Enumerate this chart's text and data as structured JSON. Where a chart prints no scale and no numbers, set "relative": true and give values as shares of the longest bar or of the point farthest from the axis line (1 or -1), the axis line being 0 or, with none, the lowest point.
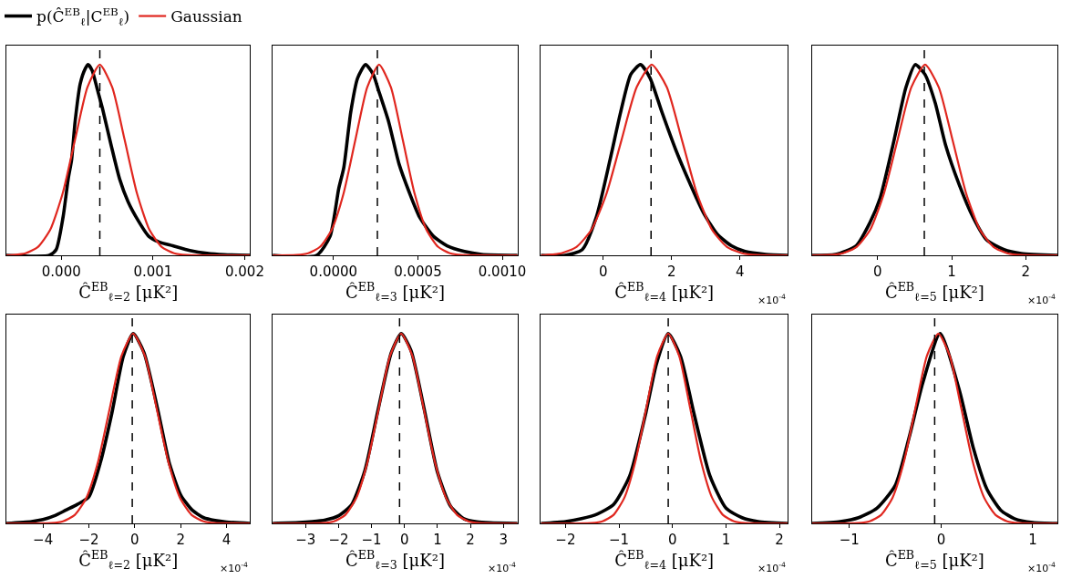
{
  "chart_data": [
    {
      "type": "line",
      "relative": true,
      "legend": "top left",
      "xlabel": "Ĉ$^{EB}$$_{ℓ=2}$ [μK²]",
      "xlim": [
        -0.0006,
        0.00206
      ],
      "xticks": [
        {
          "value": 0,
          "label": "0.000"
        },
        {
          "value": 0.001,
          "label": "0.001"
        },
        {
          "value": 0.002,
          "label": "0.002"
        }
      ],
      "ref_lines": [
        {
          "axis": "x",
          "value": 0.00042,
          "color": "#000000",
          "line_style": "dashed"
        }
      ],
      "series": [
        {
          "name": "p(Ĉ$^{EB}$$_{ℓ}$|C$^{EB}$$_{ℓ}$)",
          "color": "#000000",
          "x": [
            -0.0006,
            -0.00013,
            -5.6e-05,
            1.9e-05,
            7.5e-05,
            0.000112,
            0.00015,
            0.000206,
            0.000262,
            0.000292,
            0.000336,
            0.000393,
            0.000449,
            0.000542,
            0.000636,
            0.000729,
            0.000841,
            0.000953,
            0.001065,
            0.001215,
            0.001402,
            0.001589,
            0.001776,
            0.00206
          ],
          "values": [
            0,
            0,
            0.03,
            0.2,
            0.4,
            0.5,
            0.7,
            0.9,
            0.98,
            1,
            0.97,
            0.87,
            0.77,
            0.58,
            0.4,
            0.28,
            0.18,
            0.1,
            0.07,
            0.05,
            0.025,
            0.01,
            0.003,
            0
          ]
        },
        {
          "name": "Gaussian",
          "color": "#e0271f",
          "x": [
            -0.0006,
            -0.000525,
            -0.00039,
            -0.000255,
            -0.00012,
            1.5e-05,
            0.00015,
            0.000285,
            0.00042,
            0.000555,
            0.00069,
            0.000825,
            0.00096,
            0.001095,
            0.00123,
            0.001365,
            0.00206
          ],
          "values": [
            0,
            0.002,
            0.011,
            0.044,
            0.135,
            0.325,
            0.607,
            0.882,
            1,
            0.882,
            0.607,
            0.325,
            0.135,
            0.044,
            0.011,
            0.002,
            0
          ]
        }
      ]
    },
    {
      "type": "line",
      "relative": true,
      "xlabel": "Ĉ$^{EB}$$_{ℓ=3}$ [μK²]",
      "xlim": [
        -0.00036,
        0.00109
      ],
      "xticks": [
        {
          "value": 0,
          "label": "0.0000"
        },
        {
          "value": 0.0005,
          "label": "0.0005"
        },
        {
          "value": 0.001,
          "label": "0.0010"
        }
      ],
      "ref_lines": [
        {
          "axis": "x",
          "value": 0.00026,
          "color": "#000000",
          "line_style": "dashed"
        }
      ],
      "series": [
        {
          "color": "#000000",
          "x": [
            -0.00036,
            -0.0001,
            -2e-05,
            3.1e-05,
            6.1e-05,
            0.000102,
            0.000143,
            0.00019,
            0.000235,
            0.000265,
            0.000327,
            0.000388,
            0.000449,
            0.00051,
            0.000592,
            0.000673,
            0.000776,
            0.000878,
            0.00109
          ],
          "values": [
            0,
            0,
            0.1,
            0.35,
            0.46,
            0.75,
            0.93,
            1,
            0.95,
            0.87,
            0.7,
            0.48,
            0.33,
            0.2,
            0.1,
            0.05,
            0.02,
            0.005,
            0
          ]
        },
        {
          "color": "#e0271f",
          "x": [
            -0.00036,
            -0.00022,
            -0.00015,
            -8e-05,
            -1e-05,
            6e-05,
            0.00013,
            0.0002,
            0.00027,
            0.00034,
            0.00041,
            0.00048,
            0.00055,
            0.00062,
            0.00069,
            0.00076,
            0.00109
          ],
          "values": [
            0,
            0.002,
            0.011,
            0.044,
            0.135,
            0.325,
            0.607,
            0.882,
            1,
            0.882,
            0.607,
            0.325,
            0.135,
            0.044,
            0.011,
            0.002,
            0
          ]
        }
      ]
    },
    {
      "type": "line",
      "relative": true,
      "xlabel": "Ĉ$^{EB}$$_{ℓ=4}$ [μK²]",
      "xlim": [
        -1.82,
        5.39
      ],
      "xticks": [
        0,
        2,
        4
      ],
      "annotations": [
        "×10$^{-4}$"
      ],
      "ref_lines": [
        {
          "axis": "x",
          "value": 1.4,
          "color": "#000000",
          "line_style": "dashed"
        }
      ],
      "series": [
        {
          "color": "#000000",
          "x": [
            -1.82,
            -1.11,
            -0.61,
            -0.2,
            0.2,
            0.51,
            0.81,
            1.09,
            1.37,
            1.72,
            2.13,
            2.53,
            2.94,
            3.34,
            3.75,
            4.15,
            4.76,
            5.39
          ],
          "values": [
            0,
            0,
            0.03,
            0.2,
            0.5,
            0.75,
            0.95,
            1,
            0.93,
            0.75,
            0.55,
            0.38,
            0.22,
            0.11,
            0.05,
            0.02,
            0.005,
            0
          ]
        },
        {
          "color": "#e0271f",
          "x": [
            -1.82,
            -1.66,
            -1.22,
            -0.78,
            -0.34,
            0.1,
            0.54,
            0.98,
            1.42,
            1.86,
            2.3,
            2.74,
            3.18,
            3.62,
            4.06,
            4.5,
            5.39
          ],
          "values": [
            0,
            0.002,
            0.011,
            0.044,
            0.135,
            0.325,
            0.607,
            0.882,
            1,
            0.882,
            0.607,
            0.325,
            0.135,
            0.044,
            0.011,
            0.002,
            0
          ]
        }
      ]
    },
    {
      "type": "line",
      "relative": true,
      "xlabel": "Ĉ$^{EB}$$_{ℓ=5}$ [μK²]",
      "xlim": [
        -0.89,
        2.43
      ],
      "xticks": [
        0,
        1,
        2
      ],
      "annotations": [
        "×10$^{-4}$"
      ],
      "ref_lines": [
        {
          "axis": "x",
          "value": 0.63,
          "color": "#000000",
          "line_style": "dashed"
        }
      ],
      "series": [
        {
          "color": "#000000",
          "x": [
            -0.89,
            -0.57,
            -0.29,
            -0.107,
            0.033,
            0.219,
            0.381,
            0.507,
            0.637,
            0.777,
            0.916,
            1.102,
            1.288,
            1.474,
            1.707,
            1.94,
            2.43
          ],
          "values": [
            0,
            0.005,
            0.05,
            0.17,
            0.3,
            0.6,
            0.88,
            1,
            0.95,
            0.8,
            0.58,
            0.37,
            0.2,
            0.08,
            0.03,
            0.01,
            0
          ]
        },
        {
          "color": "#e0271f",
          "x": [
            -0.89,
            -0.655,
            -0.47,
            -0.285,
            -0.1,
            0.085,
            0.27,
            0.455,
            0.64,
            0.825,
            1.01,
            1.195,
            1.38,
            1.565,
            1.75,
            1.935,
            2.43
          ],
          "values": [
            0,
            0.002,
            0.011,
            0.044,
            0.135,
            0.325,
            0.607,
            0.882,
            1,
            0.882,
            0.607,
            0.325,
            0.135,
            0.044,
            0.011,
            0.002,
            0
          ]
        }
      ]
    },
    {
      "type": "line",
      "relative": true,
      "xlabel": "Ĉ$^{EB}$$_{ℓ=2}$ [μK²]",
      "xlim": [
        -5.6,
        5.03
      ],
      "xticks": [
        -4,
        -2,
        0,
        2,
        4
      ],
      "annotations": [
        "×10$^{-4}$"
      ],
      "ref_lines": [
        {
          "axis": "x",
          "value": -0.11,
          "color": "#000000",
          "line_style": "dashed"
        }
      ],
      "series": [
        {
          "color": "#000000",
          "x": [
            -5.6,
            -4.5,
            -4,
            -3.5,
            -3,
            -2.5,
            -2,
            -1.5,
            -1,
            -0.5,
            -0.07,
            0.4,
            1,
            1.5,
            2,
            2.5,
            3,
            3.5,
            4,
            5.03
          ],
          "values": [
            0,
            0.01,
            0.02,
            0.04,
            0.07,
            0.1,
            0.14,
            0.32,
            0.58,
            0.88,
            1,
            0.9,
            0.6,
            0.32,
            0.15,
            0.07,
            0.03,
            0.015,
            0.007,
            0
          ]
        },
        {
          "color": "#e0271f",
          "x": [
            -5.6,
            -3.64,
            -3.13,
            -2.62,
            -2.11,
            -1.6,
            -1.09,
            -0.58,
            -0.07,
            0.44,
            0.95,
            1.46,
            1.97,
            2.48,
            2.99,
            3.5,
            5.03
          ],
          "values": [
            0,
            0.002,
            0.011,
            0.044,
            0.135,
            0.325,
            0.607,
            0.882,
            1,
            0.882,
            0.607,
            0.325,
            0.135,
            0.044,
            0.011,
            0.002,
            0
          ]
        }
      ]
    },
    {
      "type": "line",
      "relative": true,
      "xlabel": "Ĉ$^{EB}$$_{ℓ=3}$ [μK²]",
      "xlim": [
        -4.0,
        3.43
      ],
      "xticks": [
        -3,
        -2,
        -1,
        0,
        1,
        2,
        3
      ],
      "annotations": [
        "×10$^{-4}$"
      ],
      "ref_lines": [
        {
          "axis": "x",
          "value": -0.15,
          "color": "#000000",
          "line_style": "dashed"
        }
      ],
      "series": [
        {
          "color": "#000000",
          "x": [
            -4.0,
            -3.2,
            -2.8,
            -2.4,
            -2,
            -1.6,
            -1.2,
            -0.8,
            -0.4,
            -0.1,
            0.2,
            0.6,
            1,
            1.4,
            1.8,
            2.2,
            2.6,
            3.43
          ],
          "values": [
            0,
            0.004,
            0.009,
            0.018,
            0.04,
            0.1,
            0.28,
            0.6,
            0.9,
            1,
            0.91,
            0.6,
            0.27,
            0.09,
            0.025,
            0.008,
            0.003,
            0
          ]
        },
        {
          "color": "#e0271f",
          "x": [
            -4.0,
            -2.48,
            -2.14,
            -1.8,
            -1.46,
            -1.12,
            -0.78,
            -0.44,
            -0.1,
            0.24,
            0.58,
            0.92,
            1.26,
            1.6,
            1.94,
            2.28,
            3.43
          ],
          "values": [
            0,
            0.002,
            0.011,
            0.044,
            0.135,
            0.325,
            0.607,
            0.882,
            1,
            0.882,
            0.607,
            0.325,
            0.135,
            0.044,
            0.011,
            0.002,
            0
          ]
        }
      ]
    },
    {
      "type": "line",
      "relative": true,
      "xlabel": "Ĉ$^{EB}$$_{ℓ=4}$ [μK²]",
      "xlim": [
        -2.46,
        2.15
      ],
      "xticks": [
        -2,
        -1,
        0,
        1,
        2
      ],
      "annotations": [
        "×10$^{-4}$"
      ],
      "ref_lines": [
        {
          "axis": "x",
          "value": -0.08,
          "color": "#000000",
          "line_style": "dashed"
        }
      ],
      "series": [
        {
          "color": "#000000",
          "x": [
            -2.46,
            -2,
            -1.7,
            -1.4,
            -1.1,
            -0.8,
            -0.5,
            -0.3,
            -0.08,
            0.15,
            0.4,
            0.7,
            1,
            1.3,
            1.6,
            2.15
          ],
          "values": [
            0,
            0.01,
            0.025,
            0.05,
            0.1,
            0.25,
            0.58,
            0.84,
            1,
            0.88,
            0.58,
            0.25,
            0.08,
            0.03,
            0.01,
            0
          ]
        },
        {
          "color": "#e0271f",
          "x": [
            -2.46,
            -1.515,
            -1.31,
            -1.105,
            -0.9,
            -0.695,
            -0.49,
            -0.285,
            -0.08,
            0.125,
            0.33,
            0.535,
            0.74,
            0.945,
            1.15,
            1.355,
            2.15
          ],
          "values": [
            0,
            0.002,
            0.011,
            0.044,
            0.135,
            0.325,
            0.607,
            0.882,
            1,
            0.882,
            0.607,
            0.325,
            0.135,
            0.044,
            0.011,
            0.002,
            0
          ]
        }
      ]
    },
    {
      "type": "line",
      "relative": true,
      "xlabel": "Ĉ$^{EB}$$_{ℓ=5}$ [μK²]",
      "xlim": [
        -1.41,
        1.27
      ],
      "xticks": [
        -1,
        0,
        1
      ],
      "annotations": [
        "×10$^{-4}$"
      ],
      "ref_lines": [
        {
          "axis": "x",
          "value": -0.07,
          "color": "#000000",
          "line_style": "dashed"
        }
      ],
      "series": [
        {
          "color": "#000000",
          "x": [
            -1.41,
            -1.1,
            -0.9,
            -0.7,
            -0.5,
            -0.35,
            -0.2,
            -0.01,
            0.2,
            0.35,
            0.5,
            0.65,
            0.8,
            1,
            1.27
          ],
          "values": [
            0,
            0.01,
            0.03,
            0.08,
            0.2,
            0.45,
            0.74,
            1,
            0.7,
            0.4,
            0.18,
            0.07,
            0.025,
            0.005,
            0
          ]
        },
        {
          "color": "#e0271f",
          "x": [
            -1.41,
            -0.905,
            -0.78,
            -0.655,
            -0.53,
            -0.405,
            -0.28,
            -0.155,
            -0.03,
            0.095,
            0.22,
            0.345,
            0.47,
            0.595,
            0.72,
            0.845,
            1.27
          ],
          "values": [
            0,
            0.002,
            0.011,
            0.044,
            0.135,
            0.325,
            0.607,
            0.882,
            1,
            0.882,
            0.607,
            0.325,
            0.135,
            0.044,
            0.011,
            0.002,
            0
          ]
        }
      ]
    }
  ]
}
